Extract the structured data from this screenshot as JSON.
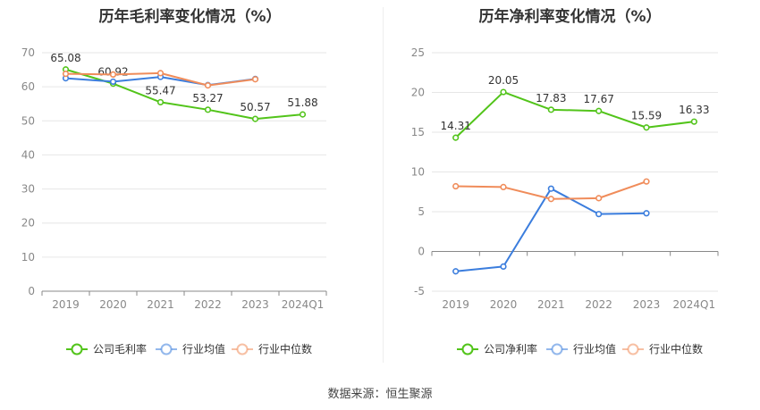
{
  "source_text": "数据来源：恒生聚源",
  "chart_data": [
    {
      "type": "line",
      "title": "历年毛利率变化情况（%）",
      "categories": [
        "2019",
        "2020",
        "2021",
        "2022",
        "2023",
        "2024Q1"
      ],
      "ylim": [
        0,
        70
      ],
      "yticks": [
        0,
        10,
        20,
        30,
        40,
        50,
        60,
        70
      ],
      "grid": true,
      "legend_position": "bottom",
      "series": [
        {
          "name": "公司毛利率",
          "color": "#52c41a",
          "values": [
            65.08,
            60.92,
            55.47,
            53.27,
            50.57,
            51.88
          ],
          "labels": [
            "65.08",
            "60.92",
            "55.47",
            "53.27",
            "50.57",
            "51.88"
          ]
        },
        {
          "name": "行业均值",
          "color": "#3b7ddd",
          "values": [
            62.5,
            61.5,
            62.9,
            60.5,
            62.3,
            null
          ]
        },
        {
          "name": "行业中位数",
          "color": "#f08c5a",
          "values": [
            63.8,
            63.6,
            64.0,
            60.4,
            62.2,
            null
          ]
        }
      ]
    },
    {
      "type": "line",
      "title": "历年净利率变化情况（%）",
      "categories": [
        "2019",
        "2020",
        "2021",
        "2022",
        "2023",
        "2024Q1"
      ],
      "ylim": [
        -5,
        25
      ],
      "yticks": [
        -5,
        0,
        5,
        10,
        15,
        20,
        25
      ],
      "grid": true,
      "legend_position": "bottom",
      "series": [
        {
          "name": "公司净利率",
          "color": "#52c41a",
          "values": [
            14.31,
            20.05,
            17.83,
            17.67,
            15.59,
            16.33
          ],
          "labels": [
            "14.31",
            "20.05",
            "17.83",
            "17.67",
            "15.59",
            "16.33"
          ]
        },
        {
          "name": "行业均值",
          "color": "#3b7ddd",
          "values": [
            -2.5,
            -1.9,
            7.9,
            4.7,
            4.8,
            null
          ]
        },
        {
          "name": "行业中位数",
          "color": "#f08c5a",
          "values": [
            8.2,
            8.1,
            6.6,
            6.7,
            8.8,
            null
          ]
        }
      ]
    }
  ]
}
